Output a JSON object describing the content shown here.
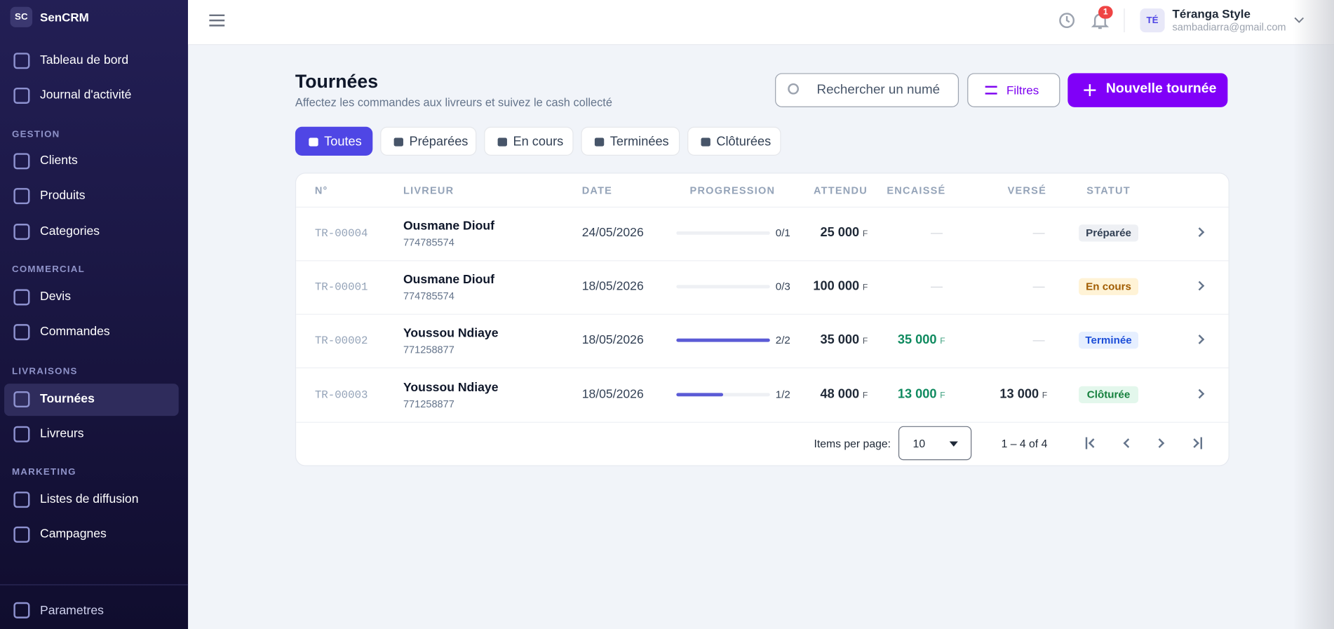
{
  "sidebar": {
    "logo": "SC",
    "brand": "SenCRM",
    "top": [
      "Tableau de bord",
      "Journal d'activité"
    ],
    "sections": [
      {
        "label": "GESTION",
        "items": [
          "Clients",
          "Produits",
          "Categories"
        ]
      },
      {
        "label": "COMMERCIAL",
        "items": [
          "Devis",
          "Commandes"
        ]
      },
      {
        "label": "LIVRAISONS",
        "items": [
          "Tournées",
          "Livreurs"
        ]
      },
      {
        "label": "MARKETING",
        "items": [
          "Listes de diffusion",
          "Campagnes"
        ]
      }
    ],
    "bottom": "Parametres"
  },
  "header": {
    "notifications": "1",
    "user_initials": "TÉ",
    "user_name": "Téranga Style",
    "user_email": "sambadiarra@gmail.com"
  },
  "page": {
    "title": "Tournées",
    "subtitle": "Affectez les commandes aux livreurs et suivez le cash collecté",
    "search_placeholder": "Rechercher un numé",
    "filters": "Filtres",
    "new_button": "Nouvelle tournée"
  },
  "tabs": [
    "Toutes",
    "Préparées",
    "En cours",
    "Terminées",
    "Clôturées"
  ],
  "table": {
    "columns": [
      "N°",
      "LIVREUR",
      "DATE",
      "PROGRESSION",
      "ATTENDU",
      "ENCAISSÉ",
      "VERSÉ",
      "STATUT"
    ],
    "rows": [
      {
        "number": "TR-00004",
        "driver": "Ousmane Diouf",
        "phone": "774785574",
        "date": "24/05/2026",
        "progress_done": 0,
        "progress_total": 1,
        "progress_label": "0/1",
        "expected": "25 000",
        "expected_currency": "F",
        "collected": "—",
        "collected_currency": null,
        "paid": "—",
        "paid_currency": null,
        "status": "Préparée",
        "status_bg": "#eef0f4",
        "status_fg": "#334155"
      },
      {
        "number": "TR-00001",
        "driver": "Ousmane Diouf",
        "phone": "774785574",
        "date": "18/05/2026",
        "progress_done": 0,
        "progress_total": 3,
        "progress_label": "0/3",
        "expected": "100 000",
        "expected_currency": "F",
        "collected": "—",
        "collected_currency": null,
        "paid": "—",
        "paid_currency": null,
        "status": "En cours",
        "status_bg": "#fff3d6",
        "status_fg": "#a15c00"
      },
      {
        "number": "TR-00002",
        "driver": "Youssou Ndiaye",
        "phone": "771258877",
        "date": "18/05/2026",
        "progress_done": 2,
        "progress_total": 2,
        "progress_label": "2/2",
        "expected": "35 000",
        "expected_currency": "F",
        "collected": "35 000",
        "collected_currency": "F",
        "paid": "—",
        "paid_currency": null,
        "status": "Terminée",
        "status_bg": "#e6efff",
        "status_fg": "#1d4ed8"
      },
      {
        "number": "TR-00003",
        "driver": "Youssou Ndiaye",
        "phone": "771258877",
        "date": "18/05/2026",
        "progress_done": 1,
        "progress_total": 2,
        "progress_label": "1/2",
        "expected": "48 000",
        "expected_currency": "F",
        "collected": "13 000",
        "collected_currency": "F",
        "paid": "13 000",
        "paid_currency": "F",
        "status": "Clôturée",
        "status_bg": "#e3f7ec",
        "status_fg": "#15803d"
      }
    ]
  },
  "pagination": {
    "items_per_page_label": "Items per page:",
    "items_per_page": "10",
    "range": "1 – 4 of 4"
  }
}
